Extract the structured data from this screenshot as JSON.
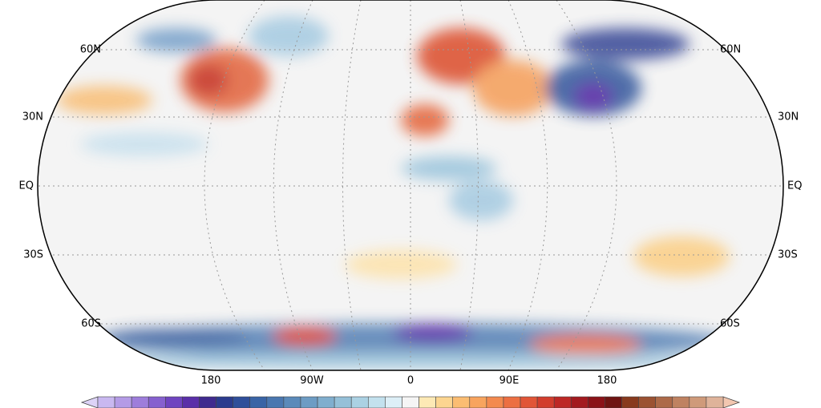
{
  "map": {
    "lat_labels_left": [
      "60N",
      "30N",
      "EQ",
      "30S",
      "60S"
    ],
    "lat_labels_right": [
      "60N",
      "30N",
      "EQ",
      "30S",
      "60S"
    ],
    "lon_labels": [
      "180",
      "90W",
      "0",
      "90E",
      "180"
    ],
    "colorbar": {
      "under_color": "#ddd3f7",
      "over_color": "#f3c7b0",
      "colors": [
        "#c9b8f0",
        "#b49be6",
        "#9d7ddb",
        "#8660cf",
        "#6f44c0",
        "#5a2fa8",
        "#3f2a8f",
        "#2b3b8e",
        "#2f4f9a",
        "#3964a6",
        "#4a77b0",
        "#5b8aba",
        "#6d9cc4",
        "#80aece",
        "#95c0d8",
        "#abd1e3",
        "#c3e1ee",
        "#ddeff7",
        "#f5f5f5",
        "#fde9b5",
        "#fcd590",
        "#fbbd72",
        "#f8a45e",
        "#f38a4f",
        "#ec6f42",
        "#e15537",
        "#d23d2d",
        "#bd2725",
        "#a31a1f",
        "#8b1218",
        "#6f1412",
        "#883a1e",
        "#9b5232",
        "#ad6a49",
        "#bf8261",
        "#cf9a7a",
        "#dfb39a"
      ]
    }
  }
}
